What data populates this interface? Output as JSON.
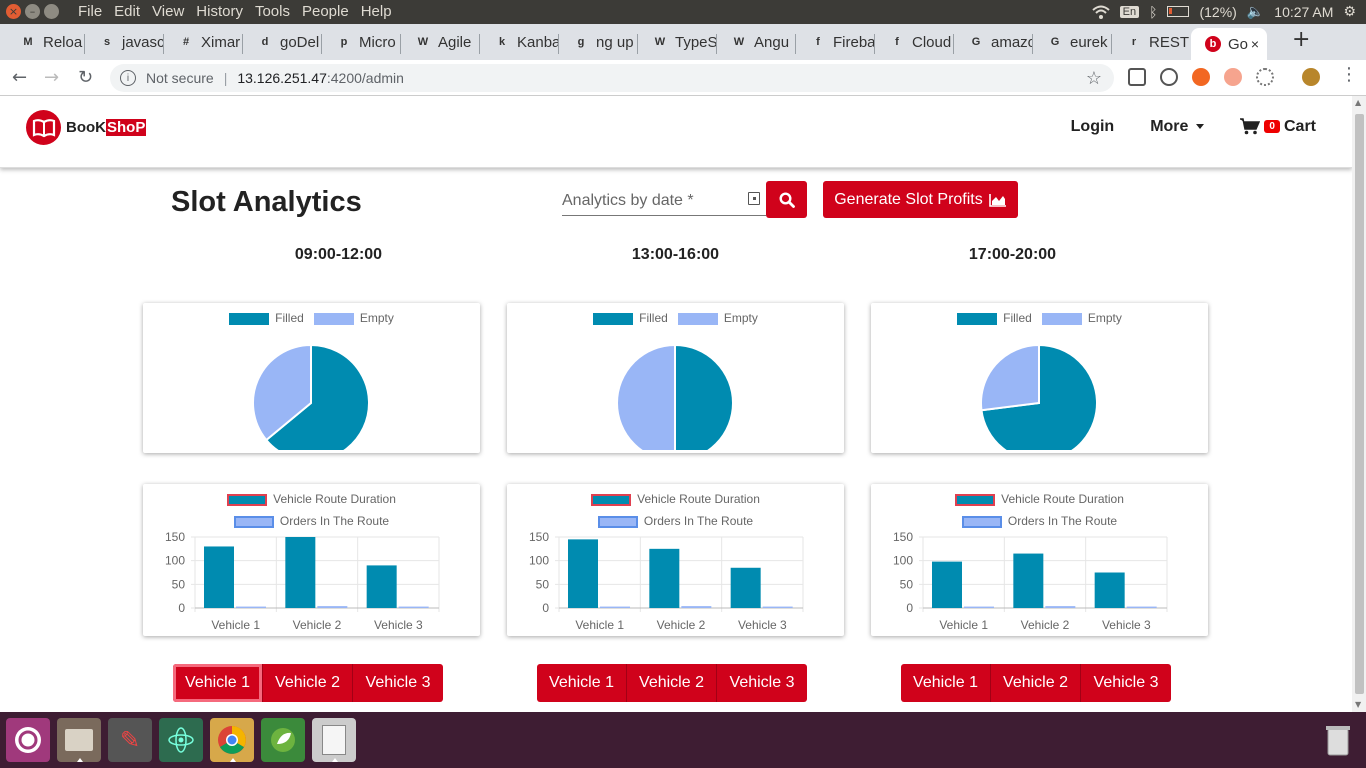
{
  "os": {
    "menu": [
      "File",
      "Edit",
      "View",
      "History",
      "Tools",
      "People",
      "Help"
    ],
    "lang": "En",
    "battery": "(12%)",
    "time": "10:27 AM"
  },
  "tabs": [
    {
      "icon": "M",
      "label": "Reloa"
    },
    {
      "icon": "s",
      "label": "javasc"
    },
    {
      "icon": "#",
      "label": "Ximar"
    },
    {
      "icon": "d",
      "label": "goDel"
    },
    {
      "icon": "p",
      "label": "Micro"
    },
    {
      "icon": "W",
      "label": "Agile"
    },
    {
      "icon": "k",
      "label": "Kanba"
    },
    {
      "icon": "g",
      "label": "ng up"
    },
    {
      "icon": "W",
      "label": "TypeS"
    },
    {
      "icon": "W",
      "label": "Angu"
    },
    {
      "icon": "f",
      "label": "Fireba"
    },
    {
      "icon": "f",
      "label": "Cloud"
    },
    {
      "icon": "G",
      "label": "amazo"
    },
    {
      "icon": "G",
      "label": "eurek"
    },
    {
      "icon": "r",
      "label": "REST"
    },
    {
      "icon": "b",
      "label": "Go"
    }
  ],
  "address": {
    "security": "Not secure",
    "host": "13.126.251.47",
    "path": ":4200/admin"
  },
  "brand": {
    "part1": "BooK",
    "part2": "ShoP"
  },
  "nav": {
    "login": "Login",
    "more": "More",
    "cart_count": "0",
    "cart": "Cart"
  },
  "page": {
    "title": "Slot Analytics",
    "date_placeholder": "Analytics by date *",
    "generate_label": "Generate Slot Profits"
  },
  "colors": {
    "filled": "#008bb0",
    "empty": "#99b6f6",
    "accent": "#d0021b",
    "duration_border": "#e04050",
    "orders_border": "#5a8ee8"
  },
  "pie_legend": {
    "filled": "Filled",
    "empty": "Empty"
  },
  "bar_legend": {
    "duration": "Vehicle Route Duration",
    "orders": "Orders In The Route"
  },
  "slots": [
    {
      "time": "09:00-12:00"
    },
    {
      "time": "13:00-16:00"
    },
    {
      "time": "17:00-20:00"
    }
  ],
  "vehicle_buttons": [
    "Vehicle 1",
    "Vehicle 2",
    "Vehicle 3"
  ],
  "chart_data": [
    {
      "type": "pie",
      "title": "09:00-12:00",
      "labels": [
        "Filled",
        "Empty"
      ],
      "values": [
        64,
        36
      ]
    },
    {
      "type": "pie",
      "title": "13:00-16:00",
      "labels": [
        "Filled",
        "Empty"
      ],
      "values": [
        50,
        50
      ]
    },
    {
      "type": "pie",
      "title": "17:00-20:00",
      "labels": [
        "Filled",
        "Empty"
      ],
      "values": [
        73,
        27
      ]
    },
    {
      "type": "bar",
      "title": "09:00-12:00",
      "categories": [
        "Vehicle 1",
        "Vehicle 2",
        "Vehicle 3"
      ],
      "ylim": [
        0,
        150
      ],
      "yticks": [
        0,
        50,
        100,
        150
      ],
      "series": [
        {
          "name": "Vehicle Route Duration",
          "values": [
            130,
            150,
            90
          ]
        },
        {
          "name": "Orders In The Route",
          "values": [
            3,
            4,
            3
          ]
        }
      ]
    },
    {
      "type": "bar",
      "title": "13:00-16:00",
      "categories": [
        "Vehicle 1",
        "Vehicle 2",
        "Vehicle 3"
      ],
      "ylim": [
        0,
        150
      ],
      "yticks": [
        0,
        50,
        100,
        150
      ],
      "series": [
        {
          "name": "Vehicle Route Duration",
          "values": [
            145,
            125,
            85
          ]
        },
        {
          "name": "Orders In The Route",
          "values": [
            3,
            4,
            3
          ]
        }
      ]
    },
    {
      "type": "bar",
      "title": "17:00-20:00",
      "categories": [
        "Vehicle 1",
        "Vehicle 2",
        "Vehicle 3"
      ],
      "ylim": [
        0,
        150
      ],
      "yticks": [
        0,
        50,
        100,
        150
      ],
      "series": [
        {
          "name": "Vehicle Route Duration",
          "values": [
            98,
            115,
            75
          ]
        },
        {
          "name": "Orders In The Route",
          "values": [
            3,
            4,
            3
          ]
        }
      ]
    }
  ]
}
